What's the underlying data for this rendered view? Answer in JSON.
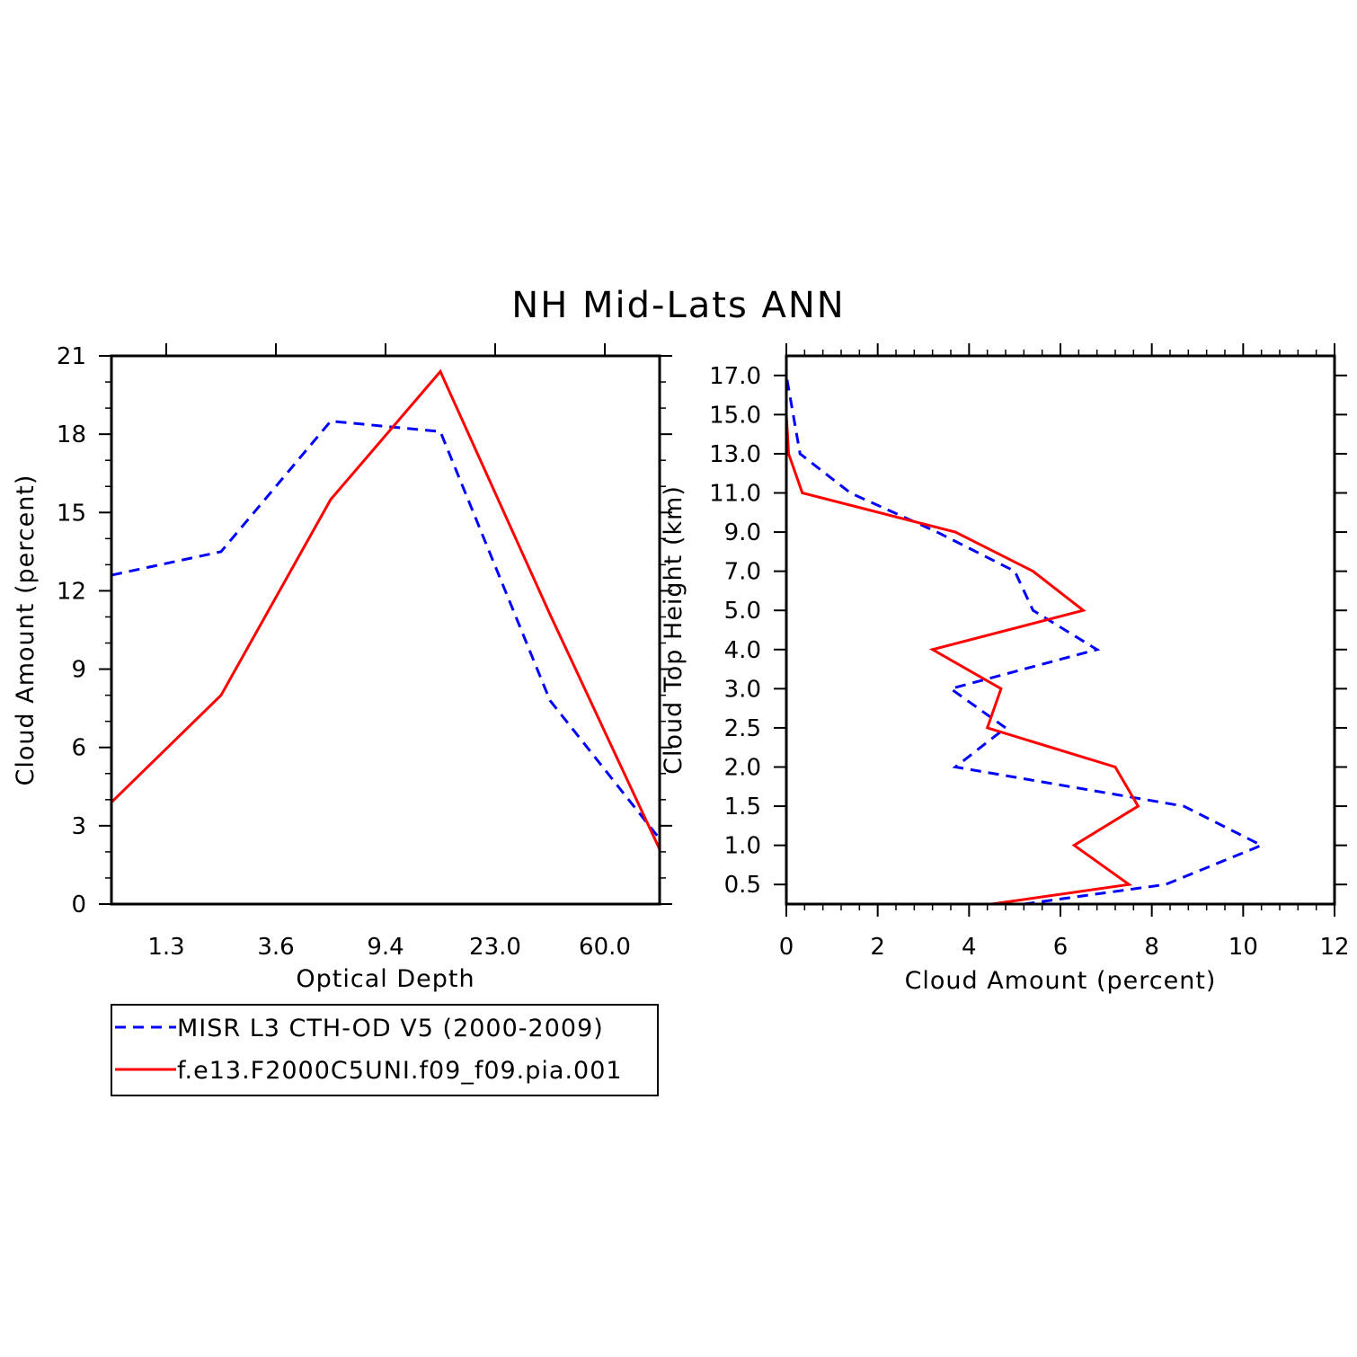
{
  "title": "NH Mid-Lats ANN",
  "colors": {
    "obs": "#0000ff",
    "model": "#ff0000",
    "axis": "#000000"
  },
  "legend": [
    {
      "label": "MISR L3 CTH-OD V5 (2000-2009)",
      "color": "#0000ff",
      "dash": "dashed"
    },
    {
      "label": "f.e13.F2000C5UNI.f09_f09.pia.001",
      "color": "#ff0000",
      "dash": "solid"
    }
  ],
  "chart_data": [
    {
      "type": "line",
      "xlabel": "Optical Depth",
      "ylabel": "Cloud Amount (percent)",
      "ylim": [
        0,
        21
      ],
      "yticks": [
        "0",
        "3",
        "6",
        "9",
        "12",
        "15",
        "18",
        "21"
      ],
      "xticks": [
        "1.3",
        "3.6",
        "9.4",
        "23.0",
        "60.0"
      ],
      "x_bins": [
        0.5,
        1.5,
        2.5,
        3.5,
        4.5,
        5.5,
        6.5
      ],
      "xlim": [
        0.5,
        5.5
      ],
      "series": [
        {
          "name": "MISR L3 CTH-OD V5 (2000-2009)",
          "values": [
            12.6,
            13.5,
            18.5,
            18.1,
            7.8,
            2.5
          ]
        },
        {
          "name": "f.e13.F2000C5UNI.f09_f09.pia.001",
          "values": [
            3.9,
            8.0,
            15.5,
            20.4,
            11.1,
            2.1
          ]
        }
      ]
    },
    {
      "type": "line",
      "xlabel": "Cloud Amount (percent)",
      "ylabel": "Cloud Top Height (km)",
      "xlim": [
        0,
        12
      ],
      "xticks": [
        "0",
        "2",
        "4",
        "6",
        "8",
        "10",
        "12"
      ],
      "yticks": [
        "0.5",
        "1.0",
        "1.5",
        "2.0",
        "2.5",
        "3.0",
        "4.0",
        "5.0",
        "7.0",
        "9.0",
        "11.0",
        "13.0",
        "15.0",
        "17.0"
      ],
      "ylim_index": [
        0,
        14
      ],
      "levels": [
        0.5,
        1.0,
        1.5,
        2.0,
        2.5,
        3.0,
        4.0,
        5.0,
        7.0,
        9.0,
        11.0,
        13.0,
        15.0,
        17.0
      ],
      "series": [
        {
          "name": "MISR L3 CTH-OD V5 (2000-2009)",
          "x": [
            5.2,
            8.3,
            10.4,
            8.7,
            3.7,
            4.8,
            3.6,
            6.8,
            5.4,
            5.0,
            3.3,
            1.4,
            0.3,
            0.15,
            0.0
          ],
          "y_index": [
            0,
            0.5,
            1.5,
            2.5,
            3.5,
            4.5,
            5.5,
            6.5,
            7.5,
            8.5,
            9.5,
            10.5,
            11.5,
            12.5,
            13.5
          ]
        },
        {
          "name": "f.e13.F2000C5UNI.f09_f09.pia.001",
          "x": [
            4.5,
            7.5,
            6.3,
            7.7,
            7.2,
            4.4,
            4.7,
            3.2,
            6.5,
            5.4,
            3.7,
            0.35,
            0.05,
            0.0,
            0.0
          ],
          "y_index": [
            0,
            0.5,
            1.5,
            2.5,
            3.5,
            4.5,
            5.5,
            6.5,
            7.5,
            8.5,
            9.5,
            10.5,
            11.5,
            12.5,
            13.5
          ]
        }
      ]
    }
  ]
}
